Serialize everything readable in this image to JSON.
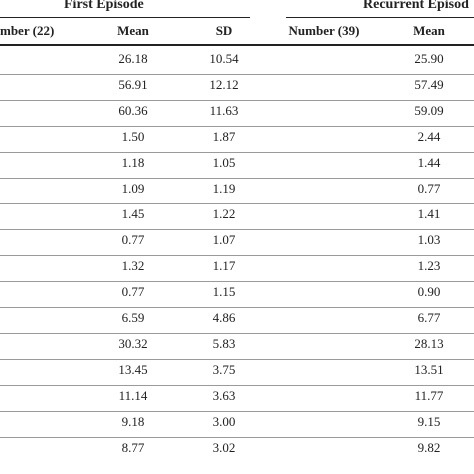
{
  "table": {
    "group_headers": {
      "first_episode": "First Episode",
      "recurrent_episode": "Recurrent Episod"
    },
    "columns": {
      "first_number": "mber (22)",
      "first_mean": "Mean",
      "first_sd": "SD",
      "recurrent_number": "Number (39)",
      "recurrent_mean": "Mean"
    },
    "rows": [
      {
        "first_mean": "26.18",
        "first_sd": "10.54",
        "recurrent_mean": "25.90"
      },
      {
        "first_mean": "56.91",
        "first_sd": "12.12",
        "recurrent_mean": "57.49"
      },
      {
        "first_mean": "60.36",
        "first_sd": "11.63",
        "recurrent_mean": "59.09"
      },
      {
        "first_mean": "1.50",
        "first_sd": "1.87",
        "recurrent_mean": "2.44"
      },
      {
        "first_mean": "1.18",
        "first_sd": "1.05",
        "recurrent_mean": "1.44"
      },
      {
        "first_mean": "1.09",
        "first_sd": "1.19",
        "recurrent_mean": "0.77"
      },
      {
        "first_mean": "1.45",
        "first_sd": "1.22",
        "recurrent_mean": "1.41"
      },
      {
        "first_mean": "0.77",
        "first_sd": "1.07",
        "recurrent_mean": "1.03"
      },
      {
        "first_mean": "1.32",
        "first_sd": "1.17",
        "recurrent_mean": "1.23"
      },
      {
        "first_mean": "0.77",
        "first_sd": "1.15",
        "recurrent_mean": "0.90"
      },
      {
        "first_mean": "6.59",
        "first_sd": "4.86",
        "recurrent_mean": "6.77"
      },
      {
        "first_mean": "30.32",
        "first_sd": "5.83",
        "recurrent_mean": "28.13"
      },
      {
        "first_mean": "13.45",
        "first_sd": "3.75",
        "recurrent_mean": "13.51"
      },
      {
        "first_mean": "11.14",
        "first_sd": "3.63",
        "recurrent_mean": "11.77"
      },
      {
        "first_mean": "9.18",
        "first_sd": "3.00",
        "recurrent_mean": "9.15"
      },
      {
        "first_mean": "8.77",
        "first_sd": "3.02",
        "recurrent_mean": "9.82"
      }
    ]
  }
}
